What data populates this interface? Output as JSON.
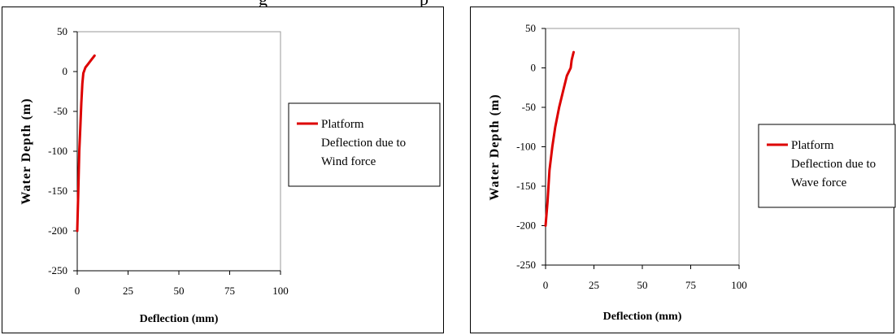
{
  "top_caption_fragment": {
    "left": "g",
    "right": "p"
  },
  "chart_data": [
    {
      "type": "line",
      "xlabel": "Deflection (mm)",
      "ylabel": "Water Depth (m)",
      "xlim": [
        0,
        100
      ],
      "ylim": [
        -250,
        50
      ],
      "x_ticks": [
        "0",
        "25",
        "50",
        "75",
        "100"
      ],
      "y_ticks": [
        "50",
        "0",
        "-50",
        "-100",
        "-150",
        "-200",
        "-250"
      ],
      "grid": false,
      "legend_position": "right",
      "series": [
        {
          "name": "Platform Deflection due to Wind force",
          "legend_lines": [
            "Platform",
            "Deflection due to",
            "Wind force"
          ],
          "color": "#dd0000",
          "x": [
            0,
            0.5,
            1,
            1.5,
            2,
            2.5,
            3,
            4,
            5.5,
            7,
            8.5
          ],
          "y": [
            -200,
            -150,
            -100,
            -70,
            -40,
            -15,
            -2,
            5,
            10,
            15,
            20
          ]
        }
      ]
    },
    {
      "type": "line",
      "xlabel": "Deflection (mm)",
      "ylabel": "Water Depth (m)",
      "xlim": [
        0,
        100
      ],
      "ylim": [
        -250,
        50
      ],
      "x_ticks": [
        "0",
        "25",
        "50",
        "75",
        "100"
      ],
      "y_ticks": [
        "50",
        "0",
        "-50",
        "-100",
        "-150",
        "-200",
        "-250"
      ],
      "grid": false,
      "legend_position": "right",
      "series": [
        {
          "name": "Platform Deflection due to Wave force",
          "legend_lines": [
            "Platform",
            "Deflection due to",
            "Wave force"
          ],
          "color": "#dd0000",
          "x": [
            0,
            1,
            2,
            3.5,
            5,
            7,
            9,
            11,
            13,
            13.5,
            14.5
          ],
          "y": [
            -200,
            -170,
            -130,
            -100,
            -75,
            -50,
            -30,
            -10,
            0,
            10,
            20
          ]
        }
      ]
    }
  ]
}
